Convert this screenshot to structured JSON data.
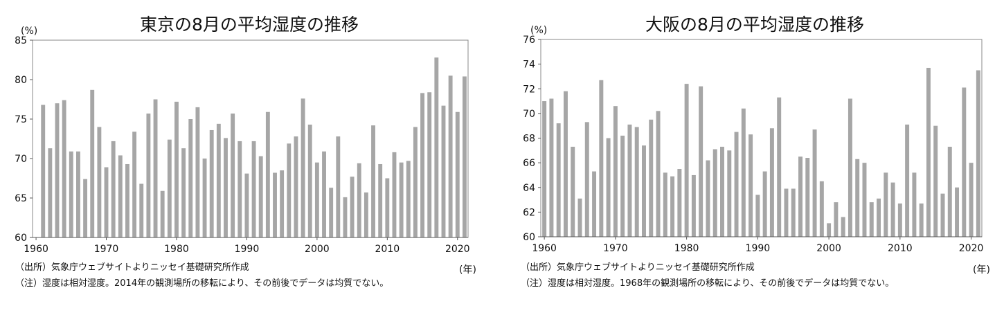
{
  "charts": [
    {
      "title": "東京の8月の平均湿度の推移",
      "yunit": "(%)",
      "xunit": "(年)",
      "source": "（出所）気象庁ウェブサイトよりニッセイ基礎研究所作成",
      "note": "（注）湿度は相対湿度。2014年の観測場所の移転により、その前後でデータは均質でない。"
    },
    {
      "title": "大阪の8月の平均湿度の推移",
      "yunit": "(%)",
      "xunit": "(年)",
      "source": "（出所）気象庁ウェブサイトよりニッセイ基礎研究所作成",
      "note": "（注）湿度は相対湿度。1968年の観測場所の移転により、その前後でデータは均質でない。"
    }
  ],
  "chart_data": [
    {
      "type": "bar",
      "title": "東京の8月の平均湿度の推移",
      "ylabel": "(%)",
      "xlabel": "(年)",
      "ylim": [
        60,
        85
      ],
      "yticks": [
        60,
        65,
        70,
        75,
        80,
        85
      ],
      "xticks": [
        1960,
        1970,
        1980,
        1990,
        2000,
        2010,
        2020
      ],
      "x": [
        1960,
        1961,
        1962,
        1963,
        1964,
        1965,
        1966,
        1967,
        1968,
        1969,
        1970,
        1971,
        1972,
        1973,
        1974,
        1975,
        1976,
        1977,
        1978,
        1979,
        1980,
        1981,
        1982,
        1983,
        1984,
        1985,
        1986,
        1987,
        1988,
        1989,
        1990,
        1991,
        1992,
        1993,
        1994,
        1995,
        1996,
        1997,
        1998,
        1999,
        2000,
        2001,
        2002,
        2003,
        2004,
        2005,
        2006,
        2007,
        2008,
        2009,
        2010,
        2011,
        2012,
        2013,
        2014,
        2015,
        2016,
        2017,
        2018,
        2019,
        2020,
        2021
      ],
      "values": [
        60,
        76.8,
        71.3,
        77,
        77.4,
        70.9,
        70.9,
        67.4,
        78.7,
        74,
        68.9,
        72.2,
        70.4,
        69.3,
        73.4,
        66.8,
        75.7,
        77.5,
        65.9,
        72.4,
        77.2,
        71.3,
        75,
        76.5,
        70,
        73.6,
        74.4,
        72.6,
        75.7,
        72.2,
        68.1,
        72.2,
        70.3,
        75.9,
        68.2,
        68.5,
        71.9,
        72.8,
        77.6,
        74.3,
        69.5,
        70.9,
        66.3,
        72.8,
        65.1,
        67.7,
        69.4,
        65.7,
        74.2,
        69.3,
        67.5,
        70.8,
        69.5,
        69.7,
        74,
        78.3,
        78.4,
        82.8,
        76.7,
        80.5,
        75.9,
        80.4
      ],
      "grid": false,
      "legend": "none"
    },
    {
      "type": "bar",
      "title": "大阪の8月の平均湿度の推移",
      "ylabel": "(%)",
      "xlabel": "(年)",
      "ylim": [
        60,
        76
      ],
      "yticks": [
        60,
        62,
        64,
        66,
        68,
        70,
        72,
        74,
        76
      ],
      "xticks": [
        1960,
        1970,
        1980,
        1990,
        2000,
        2010,
        2020
      ],
      "x": [
        1960,
        1961,
        1962,
        1963,
        1964,
        1965,
        1966,
        1967,
        1968,
        1969,
        1970,
        1971,
        1972,
        1973,
        1974,
        1975,
        1976,
        1977,
        1978,
        1979,
        1980,
        1981,
        1982,
        1983,
        1984,
        1985,
        1986,
        1987,
        1988,
        1989,
        1990,
        1991,
        1992,
        1993,
        1994,
        1995,
        1996,
        1997,
        1998,
        1999,
        2000,
        2001,
        2002,
        2003,
        2004,
        2005,
        2006,
        2007,
        2008,
        2009,
        2010,
        2011,
        2012,
        2013,
        2014,
        2015,
        2016,
        2017,
        2018,
        2019,
        2020,
        2021
      ],
      "values": [
        71,
        71.2,
        69.2,
        71.8,
        67.3,
        63.1,
        69.3,
        65.3,
        72.7,
        68,
        70.6,
        68.2,
        69.1,
        68.9,
        67.4,
        69.5,
        70.2,
        65.2,
        64.9,
        65.5,
        72.4,
        65,
        72.2,
        66.2,
        67.1,
        67.3,
        67,
        68.5,
        70.4,
        68.3,
        63.4,
        65.3,
        68.8,
        71.3,
        63.9,
        63.9,
        66.5,
        66.4,
        68.7,
        64.5,
        61.1,
        62.8,
        61.6,
        71.2,
        66.3,
        66,
        62.8,
        63.1,
        65.2,
        64.4,
        62.7,
        69.1,
        65.2,
        62.7,
        73.7,
        69,
        63.5,
        67.3,
        64,
        72.1,
        66,
        73.5
      ],
      "grid": false,
      "legend": "none"
    }
  ]
}
